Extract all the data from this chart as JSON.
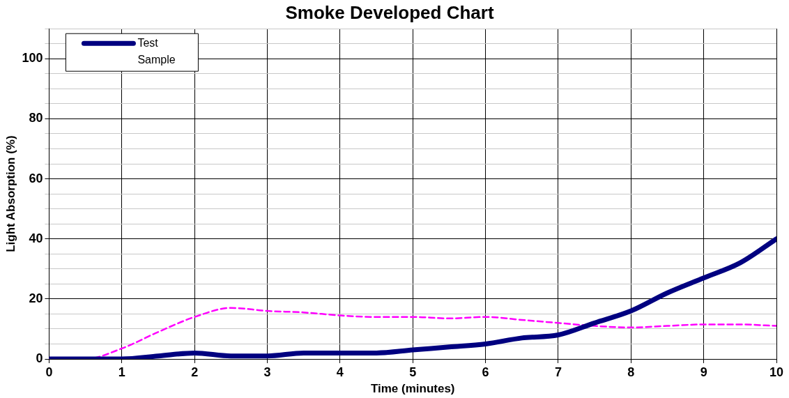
{
  "chart_data": {
    "type": "line",
    "title": "Smoke Developed Chart",
    "xlabel": "Time (minutes)",
    "ylabel": "Light Absorption (%)",
    "x": [
      0,
      0.5,
      1,
      1.5,
      2,
      2.5,
      3,
      3.5,
      4,
      4.5,
      5,
      5.5,
      6,
      6.5,
      7,
      7.5,
      8,
      8.5,
      9,
      9.5,
      10
    ],
    "series": [
      {
        "name": "Test Sample",
        "color": "#000080",
        "line_style": "solid",
        "values": [
          0,
          0,
          0,
          1,
          2,
          1,
          1,
          2,
          2,
          2,
          3,
          4,
          5,
          7,
          8,
          12,
          16,
          22,
          27,
          32,
          40
        ]
      },
      {
        "color": "#ff00ff",
        "line_style": "dashed",
        "values": [
          0,
          0,
          3.5,
          9,
          14,
          17,
          16,
          15.5,
          14.5,
          14,
          14,
          13.5,
          14,
          13,
          12,
          11,
          10.5,
          11,
          11.5,
          11.5,
          11
        ]
      }
    ],
    "xlim": [
      0,
      10
    ],
    "xticks": [
      0,
      1,
      2,
      3,
      4,
      5,
      6,
      7,
      8,
      9,
      10
    ],
    "ylim": [
      0,
      110
    ],
    "yticks": [
      0,
      {
        "value": 5,
        "label": null
      },
      {
        "value": 10,
        "label": null
      },
      {
        "value": 15,
        "label": null
      },
      20,
      {
        "value": 25,
        "label": null
      },
      {
        "value": 30,
        "label": null
      },
      {
        "value": 35,
        "label": null
      },
      40,
      {
        "value": 45,
        "label": null
      },
      {
        "value": 50,
        "label": null
      },
      {
        "value": 55,
        "label": null
      },
      60,
      {
        "value": 65,
        "label": null
      },
      {
        "value": 70,
        "label": null
      },
      {
        "value": 75,
        "label": null
      },
      80,
      {
        "value": 85,
        "label": null
      },
      {
        "value": 90,
        "label": null
      },
      {
        "value": 95,
        "label": null
      },
      100,
      {
        "value": 105,
        "label": null
      },
      {
        "value": 110,
        "label": null
      }
    ],
    "grid": true,
    "legend": "top left",
    "marker": "none"
  }
}
